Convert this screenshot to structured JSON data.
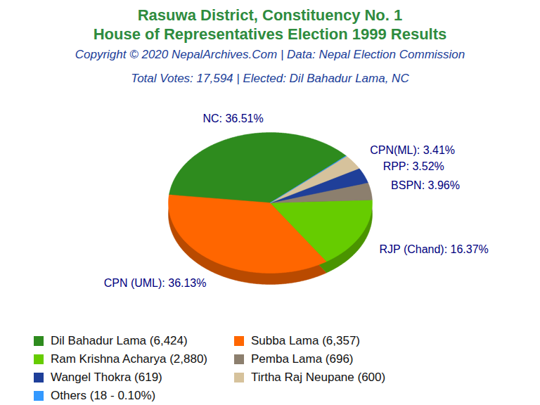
{
  "chart_data": {
    "type": "pie",
    "title": "Rasuwa District, Constituency No. 1",
    "subtitle": "House of Representatives Election 1999 Results",
    "source": "Copyright © 2020 NepalArchives.Com | Data: Nepal Election Commission",
    "note": "Total Votes: 17,594 | Elected: Dil Bahadur Lama, NC",
    "categories": [
      "Dil Bahadur Lama (6,424)",
      "Subba Lama (6,357)",
      "Ram Krishna Acharya (2,880)",
      "Pemba Lama (696)",
      "Wangel Thokra (619)",
      "Tirtha Raj Neupane (600)",
      "Others (18 - 0.10%)"
    ],
    "values": [
      36.51,
      36.13,
      16.37,
      3.96,
      3.52,
      3.41,
      0.1
    ],
    "value_labels": [
      "NC: 36.51%",
      "CPN (UML): 36.13%",
      "RJP (Chand): 16.37%",
      "BSPN: 3.96%",
      "RPP: 3.52%",
      "CPN(ML): 3.41%",
      null
    ],
    "data_labels": true,
    "colors": [
      "#2e8b1e",
      "#ff6600",
      "#66cc00",
      "#8c7f6e",
      "#1f3f99",
      "#d6c29c",
      "#3399ff"
    ],
    "legend": "bottom"
  }
}
